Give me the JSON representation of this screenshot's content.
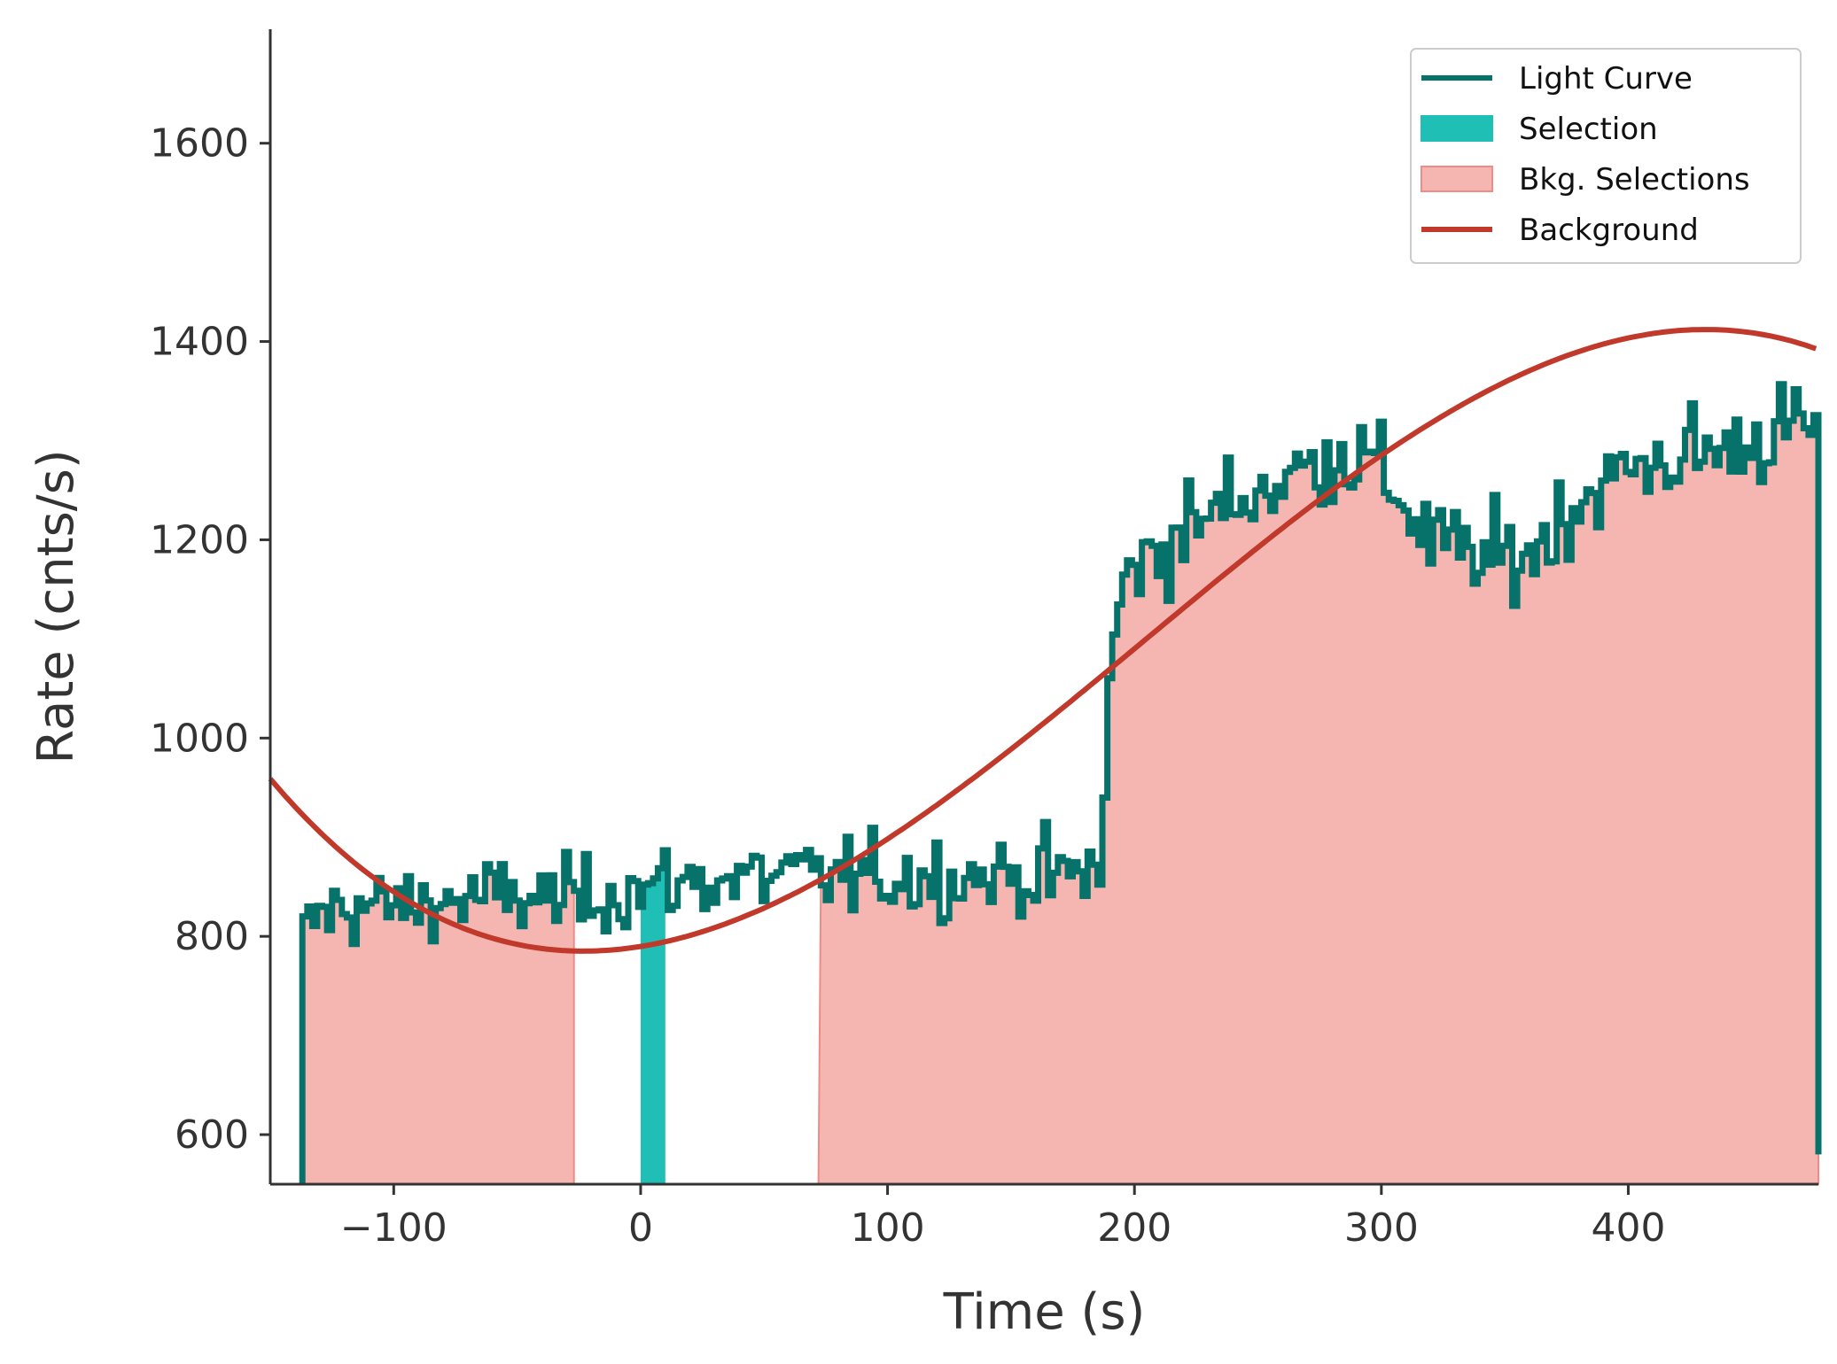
{
  "chart_data": {
    "type": "line",
    "xlabel": "Time (s)",
    "ylabel": "Rate (cnts/s)",
    "xlim": [
      -150,
      477
    ],
    "ylim": [
      550,
      1715
    ],
    "x_ticks": [
      -100,
      0,
      100,
      200,
      300,
      400
    ],
    "x_tick_labels": [
      "−100",
      "0",
      "100",
      "200",
      "300",
      "400"
    ],
    "y_ticks": [
      600,
      800,
      1000,
      1200,
      1400,
      1600
    ],
    "y_tick_labels": [
      "600",
      "800",
      "1000",
      "1200",
      "1400",
      "1600"
    ],
    "grid": false,
    "legend_position": "top-right",
    "colors": {
      "light_curve": "#06726a",
      "selection": "#20bfb6",
      "bkg_selection_fill": "#f5b6b1",
      "bkg_selection_edge": "#ec8c84",
      "background": "#c0392b",
      "axis": "#333333"
    },
    "series": [
      {
        "name": "Light Curve",
        "style": "step",
        "time_start": -137,
        "bin_width": 2,
        "anchor_times": [
          -137,
          -135,
          -130,
          -120,
          -100,
          -60,
          -30,
          0,
          20,
          50,
          90,
          120,
          150,
          175,
          186,
          190,
          195,
          215,
          240,
          260,
          285,
          300,
          320,
          340,
          360,
          380,
          400,
          420,
          440,
          455,
          470,
          475
        ],
        "anchor_rates": [
          780,
          810,
          820,
          830,
          830,
          840,
          838,
          848,
          855,
          860,
          860,
          860,
          862,
          860,
          870,
          1040,
          1160,
          1200,
          1240,
          1260,
          1290,
          1270,
          1200,
          1180,
          1185,
          1240,
          1270,
          1285,
          1290,
          1305,
          1315,
          1310
        ],
        "end_time": 477,
        "end_rate": 580
      },
      {
        "name": "Background",
        "style": "line",
        "model": "polynomial",
        "coefficients": [
          789.8,
          0.4,
          0.00818,
          -1.336e-05
        ]
      }
    ],
    "selections": [
      {
        "name": "Selection",
        "start": 0,
        "end": 10
      }
    ],
    "bkg_selections": [
      {
        "name": "Bkg. Selections",
        "start": -137,
        "end": -27
      },
      {
        "name": "Bkg. Selections",
        "start": 72,
        "end": 477
      }
    ],
    "legend": [
      {
        "label": "Light Curve",
        "kind": "line",
        "color_key": "light_curve"
      },
      {
        "label": "Selection",
        "kind": "patch",
        "color_key": "selection"
      },
      {
        "label": "Bkg. Selections",
        "kind": "patch",
        "color_key": "bkg_selection_fill"
      },
      {
        "label": "Background",
        "kind": "line",
        "color_key": "background"
      }
    ]
  }
}
